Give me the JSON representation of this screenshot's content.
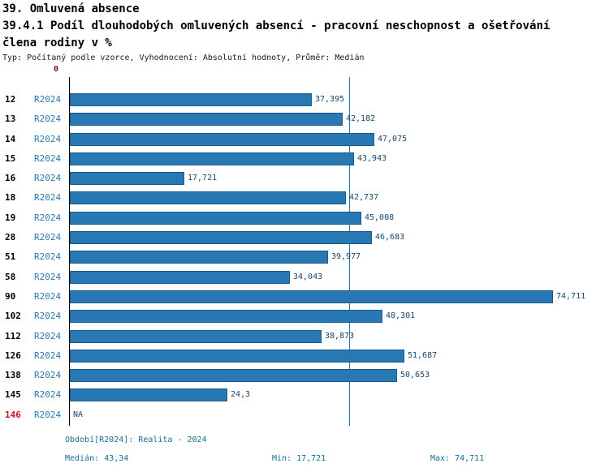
{
  "header": {
    "title": "39. Omluvená absence",
    "subtitle_line1": "39.4.1 Podíl dlouhodobých omluvených absencí - pracovní neschopnost a ošetřování",
    "subtitle_line2": "člena rodiny v %",
    "type_line": "Typ: Počítaný podle vzorce, Vyhodnocení: Absolutní hodnoty, Průměr: Medián"
  },
  "chart_data": {
    "type": "bar",
    "orientation": "horizontal",
    "title": "39.4.1 Podíl dlouhodobých omluvených absencí - pracovní neschopnost a ošetřování člena rodiny v %",
    "x_axis_zero_label": "0",
    "xlim": [
      0,
      81.6
    ],
    "median_value": 43.34,
    "legend_position": "none",
    "grid": false,
    "rows": [
      {
        "id": "12",
        "period": "R2024",
        "value": 37.395,
        "value_label": "37,395"
      },
      {
        "id": "13",
        "period": "R2024",
        "value": 42.182,
        "value_label": "42,182"
      },
      {
        "id": "14",
        "period": "R2024",
        "value": 47.075,
        "value_label": "47,075"
      },
      {
        "id": "15",
        "period": "R2024",
        "value": 43.943,
        "value_label": "43,943"
      },
      {
        "id": "16",
        "period": "R2024",
        "value": 17.721,
        "value_label": "17,721"
      },
      {
        "id": "18",
        "period": "R2024",
        "value": 42.737,
        "value_label": "42,737"
      },
      {
        "id": "19",
        "period": "R2024",
        "value": 45.008,
        "value_label": "45,008"
      },
      {
        "id": "28",
        "period": "R2024",
        "value": 46.683,
        "value_label": "46,683"
      },
      {
        "id": "51",
        "period": "R2024",
        "value": 39.977,
        "value_label": "39,977"
      },
      {
        "id": "58",
        "period": "R2024",
        "value": 34.043,
        "value_label": "34,043"
      },
      {
        "id": "90",
        "period": "R2024",
        "value": 74.711,
        "value_label": "74,711"
      },
      {
        "id": "102",
        "period": "R2024",
        "value": 48.301,
        "value_label": "48,301"
      },
      {
        "id": "112",
        "period": "R2024",
        "value": 38.873,
        "value_label": "38,873"
      },
      {
        "id": "126",
        "period": "R2024",
        "value": 51.687,
        "value_label": "51,687"
      },
      {
        "id": "138",
        "period": "R2024",
        "value": 50.653,
        "value_label": "50,653"
      },
      {
        "id": "145",
        "period": "R2024",
        "value": 24.3,
        "value_label": "24,3"
      },
      {
        "id": "146",
        "period": "R2024",
        "value": null,
        "value_label": "NA"
      }
    ]
  },
  "footer": {
    "period_line": "Období[R2024]: Realita - 2024",
    "median": "Medián: 43,34",
    "min": "Min: 17,721",
    "max": "Max: 74,711"
  },
  "colors": {
    "bar": "#2878b4",
    "bar_border": "#1a5a89",
    "median_line": "#2878b4",
    "value_text": "#17476e",
    "period_text": "#2878b4",
    "row_id_text": "#000000",
    "row_id_na_text": "#cc1122",
    "footer_text": "#156e96",
    "axis_zero_text": "#7a1010"
  }
}
